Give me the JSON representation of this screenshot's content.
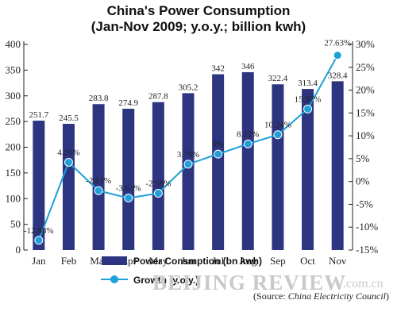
{
  "title_line1": "China's Power Consumption",
  "title_line2": "(Jan-Nov 2009; y.o.y.; billion kwh)",
  "watermark": "BEIJING REVIEW",
  "watermark_suffix": ".com.cn",
  "source_prefix": "(Source: ",
  "source_name": "China Electricity Council",
  "source_suffix": ")",
  "colors": {
    "bar": "#2e3580",
    "line": "#1ea0d8",
    "marker": "#1ea0d8"
  },
  "chart_data": {
    "type": "bar+line",
    "categories": [
      "Jan",
      "Feb",
      "Mar",
      "Apr",
      "May",
      "Jun",
      "Jul",
      "Aug",
      "Sep",
      "Oct",
      "Nov"
    ],
    "series": [
      {
        "name": "Power Consmption (bn kwh)",
        "type": "bar",
        "axis": "left",
        "values": [
          251.7,
          245.5,
          283.8,
          274.9,
          287.8,
          305.2,
          342,
          346,
          322.4,
          313.4,
          328.4
        ],
        "labels": [
          "251.7",
          "245.5",
          "283.8",
          "274.9",
          "287.8",
          "305.2",
          "342",
          "346",
          "322.4",
          "313.4",
          "328.4"
        ]
      },
      {
        "name": "Growth (y.o.y.)",
        "type": "line",
        "axis": "right",
        "values": [
          -12.88,
          4.2,
          -2.01,
          -3.63,
          -2.58,
          3.79,
          6,
          8.22,
          10.24,
          15.87,
          27.63
        ],
        "labels": [
          "-12.88%",
          "4.20%",
          "-2.01%",
          "-3.63%",
          "-2.58%",
          "3.79%",
          "6%",
          "8.22%",
          "10.24%",
          "15.87%",
          "27.63%"
        ]
      }
    ],
    "left_axis": {
      "ylim": [
        0,
        400
      ],
      "ticks": [
        "0",
        "50",
        "100",
        "150",
        "200",
        "250",
        "300",
        "350",
        "400"
      ]
    },
    "right_axis": {
      "ylim": [
        -15,
        30
      ],
      "ticks": [
        "-15%",
        "-10%",
        "-5%",
        "0%",
        "5%",
        "10%",
        "15%",
        "20%",
        "25%",
        "30%"
      ]
    },
    "legend_position": "bottom-center",
    "grid": false
  }
}
